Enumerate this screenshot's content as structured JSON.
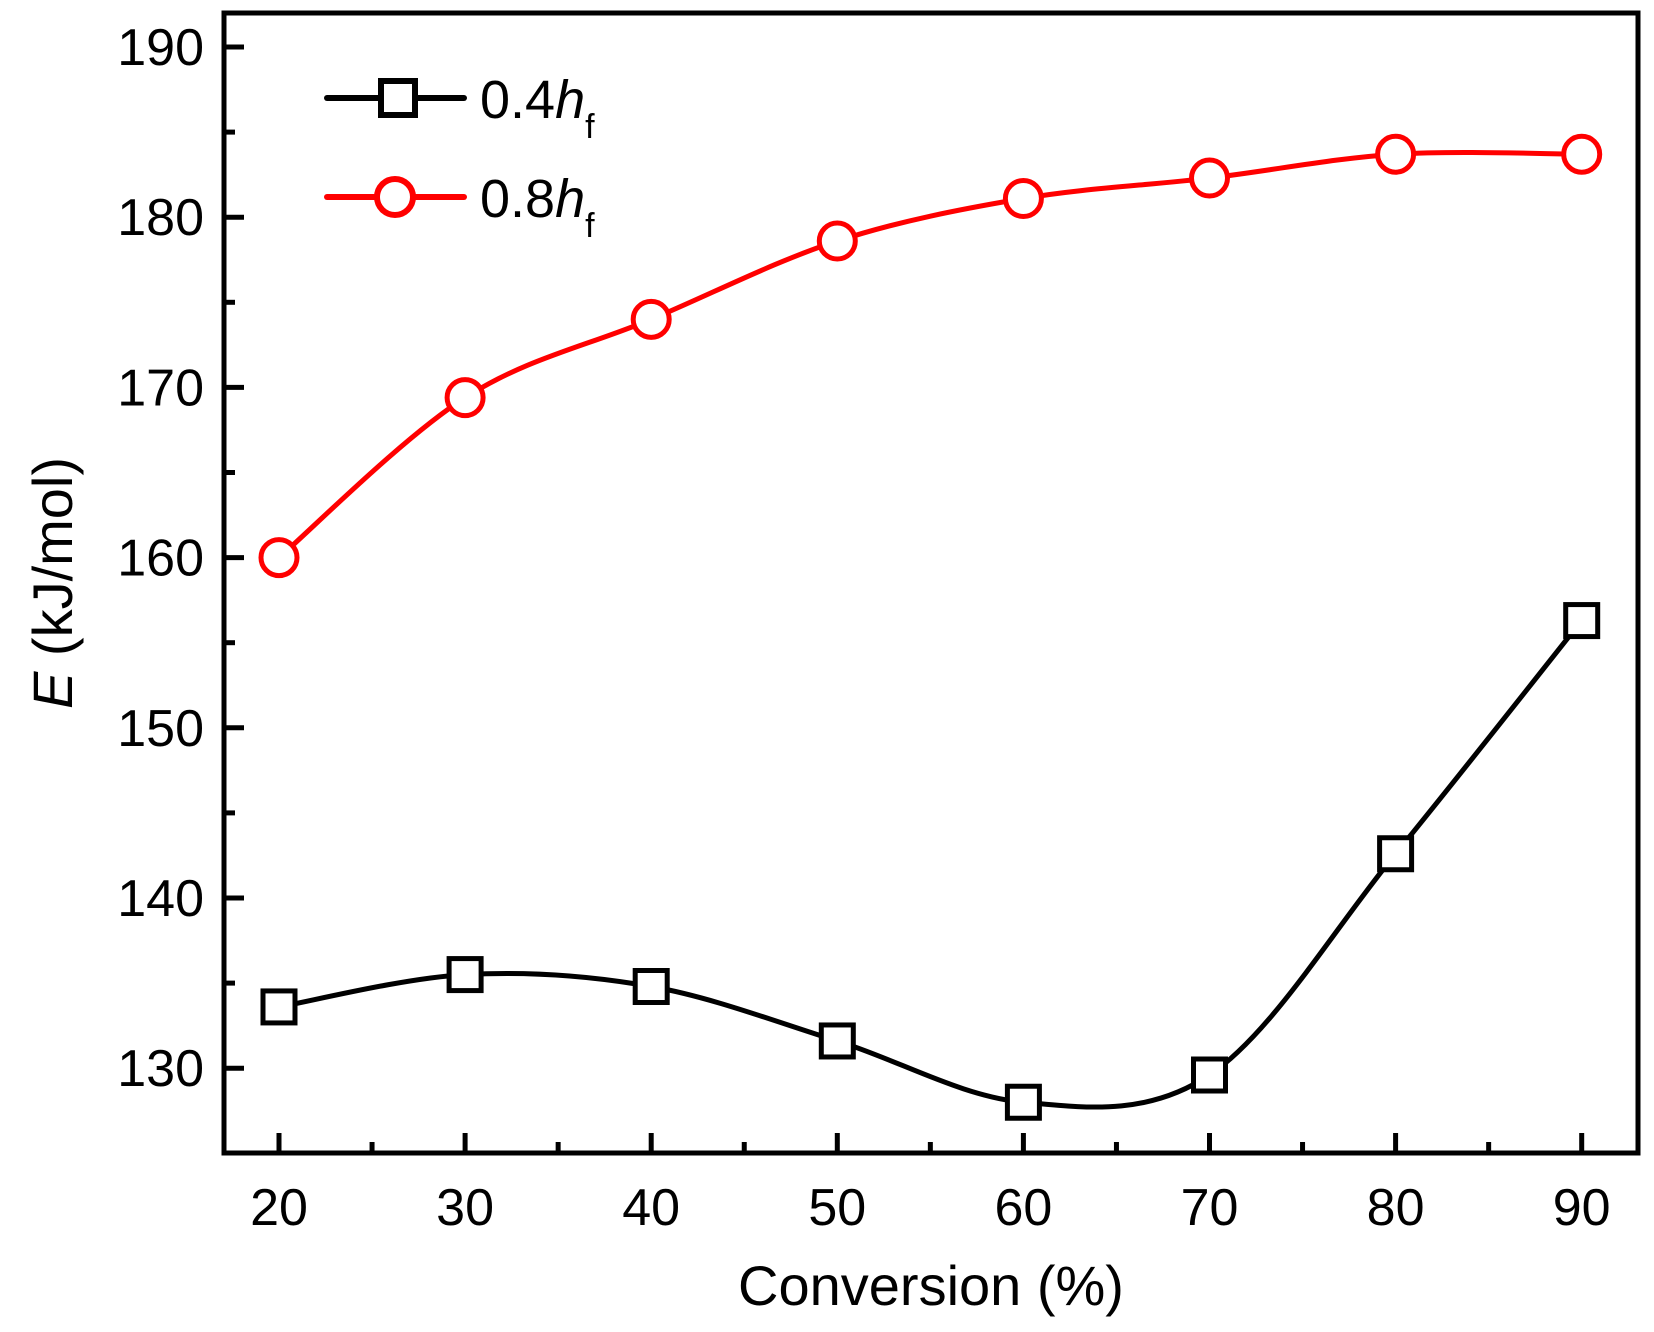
{
  "chart_data": {
    "type": "line",
    "xlabel": "Conversion (%)",
    "ylabel_symbol": "E",
    "ylabel_unit": " (kJ/mol)",
    "xlim": [
      17,
      93
    ],
    "ylim": [
      123,
      192
    ],
    "xticks": [
      20,
      30,
      40,
      50,
      60,
      70,
      80,
      90
    ],
    "yticks": [
      130,
      140,
      150,
      160,
      170,
      180,
      190
    ],
    "grid": false,
    "legend_position": "top-left",
    "x": [
      20,
      30,
      40,
      50,
      60,
      70,
      80,
      90
    ],
    "series": [
      {
        "name": "0.4",
        "name_italic": "h",
        "name_sub": "f",
        "color": "#000000",
        "marker": "square",
        "values": [
          133.6,
          135.5,
          134.8,
          131.6,
          128.0,
          129.6,
          142.6,
          156.3
        ]
      },
      {
        "name": "0.8",
        "name_italic": "h",
        "name_sub": "f",
        "color": "#ff0000",
        "marker": "circle",
        "values": [
          160.0,
          169.4,
          174.0,
          178.6,
          181.1,
          182.3,
          183.7,
          183.7
        ]
      }
    ]
  }
}
